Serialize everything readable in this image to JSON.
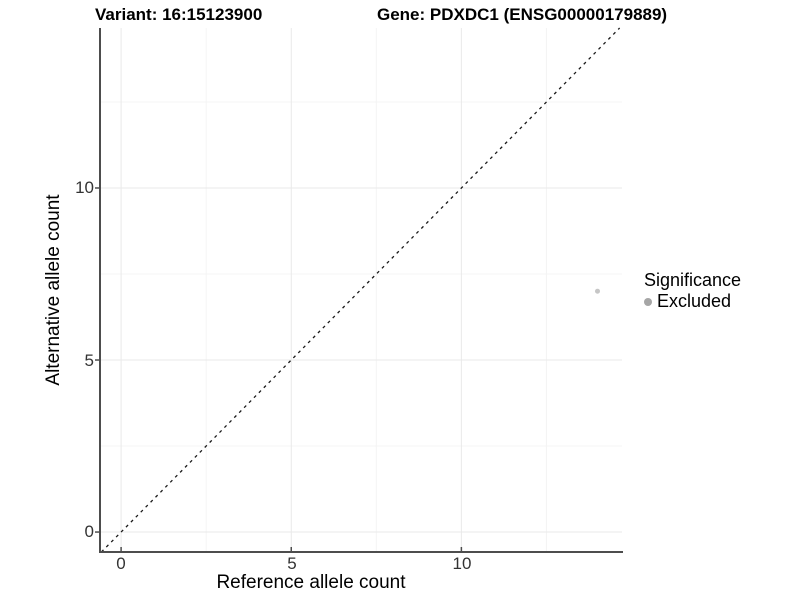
{
  "header": {
    "variant_title": "Variant: 16:15123900",
    "gene_title": "Gene: PDXDC1 (ENSG00000179889)"
  },
  "axes": {
    "x_label": "Reference allele count",
    "y_label": "Alternative allele count",
    "x_tick_labels": [
      "0",
      "5",
      "10"
    ],
    "y_tick_labels": [
      "0",
      "5",
      "10"
    ]
  },
  "legend": {
    "title": "Significance",
    "items": [
      {
        "label": "Excluded",
        "key_color": "#a6a6a6"
      }
    ]
  },
  "chart_data": {
    "type": "scatter",
    "title": "Variant: 16:15123900 | Gene: PDXDC1 (ENSG00000179889)",
    "xlabel": "Reference allele count",
    "ylabel": "Alternative allele count",
    "xlim": [
      -0.62,
      14.72
    ],
    "ylim": [
      -0.58,
      14.65
    ],
    "x_ticks": [
      0,
      5,
      10
    ],
    "y_ticks": [
      0,
      5,
      10
    ],
    "x_minor_ticks": [
      2.5,
      7.5,
      12.5
    ],
    "y_minor_ticks": [
      2.5,
      7.5,
      12.5
    ],
    "grid": true,
    "legend_position": "right",
    "series": [
      {
        "name": "Excluded",
        "color": "#c6c6c6",
        "point_radius": 2.5,
        "points": [
          {
            "x": 14,
            "y": 7
          }
        ]
      }
    ],
    "reference_line": {
      "kind": "identity",
      "equation": "y = x",
      "style": "dashed",
      "color": "#1a1a1a"
    }
  },
  "colors": {
    "background": "#ffffff",
    "axis_line": "#4d4d4d",
    "major_grid": "#e9e9e9",
    "minor_grid": "#f4f4f4",
    "tick_label": "#333333",
    "text": "#000000"
  }
}
